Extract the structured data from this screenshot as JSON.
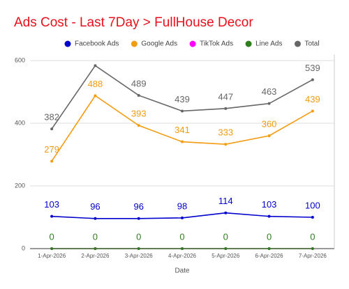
{
  "chart_data": {
    "type": "line",
    "title": "Ads Cost - Last 7Day > FullHouse Decor",
    "x_label": "Date",
    "categories": [
      "1-Apr-2026",
      "2-Apr-2026",
      "3-Apr-2026",
      "4-Apr-2026",
      "5-Apr-2026",
      "6-Apr-2026",
      "7-Apr-2026"
    ],
    "series": [
      {
        "name": "Facebook Ads",
        "color": "#0000cc",
        "values": [
          103,
          96,
          96,
          98,
          114,
          103,
          100
        ]
      },
      {
        "name": "Google Ads",
        "color": "#f39c12",
        "values": [
          279,
          488,
          393,
          341,
          333,
          360,
          439
        ]
      },
      {
        "name": "TikTok Ads",
        "color": "#ff00ff",
        "values": [
          0,
          0,
          0,
          0,
          0,
          0,
          0
        ],
        "value_labels": [
          null,
          null,
          null,
          null,
          null,
          null,
          null
        ]
      },
      {
        "name": "Line Ads",
        "color": "#2e7d1e",
        "values": [
          0,
          0,
          0,
          0,
          0,
          0,
          0
        ]
      },
      {
        "name": "Total",
        "color": "#666666",
        "values": [
          382,
          584,
          489,
          439,
          447,
          463,
          539
        ],
        "value_labels": [
          382,
          null,
          489,
          439,
          447,
          463,
          539
        ]
      }
    ],
    "ylim": [
      0,
      620
    ],
    "yticks": [
      0,
      200,
      400,
      600
    ],
    "grid": true,
    "legend": "top"
  }
}
